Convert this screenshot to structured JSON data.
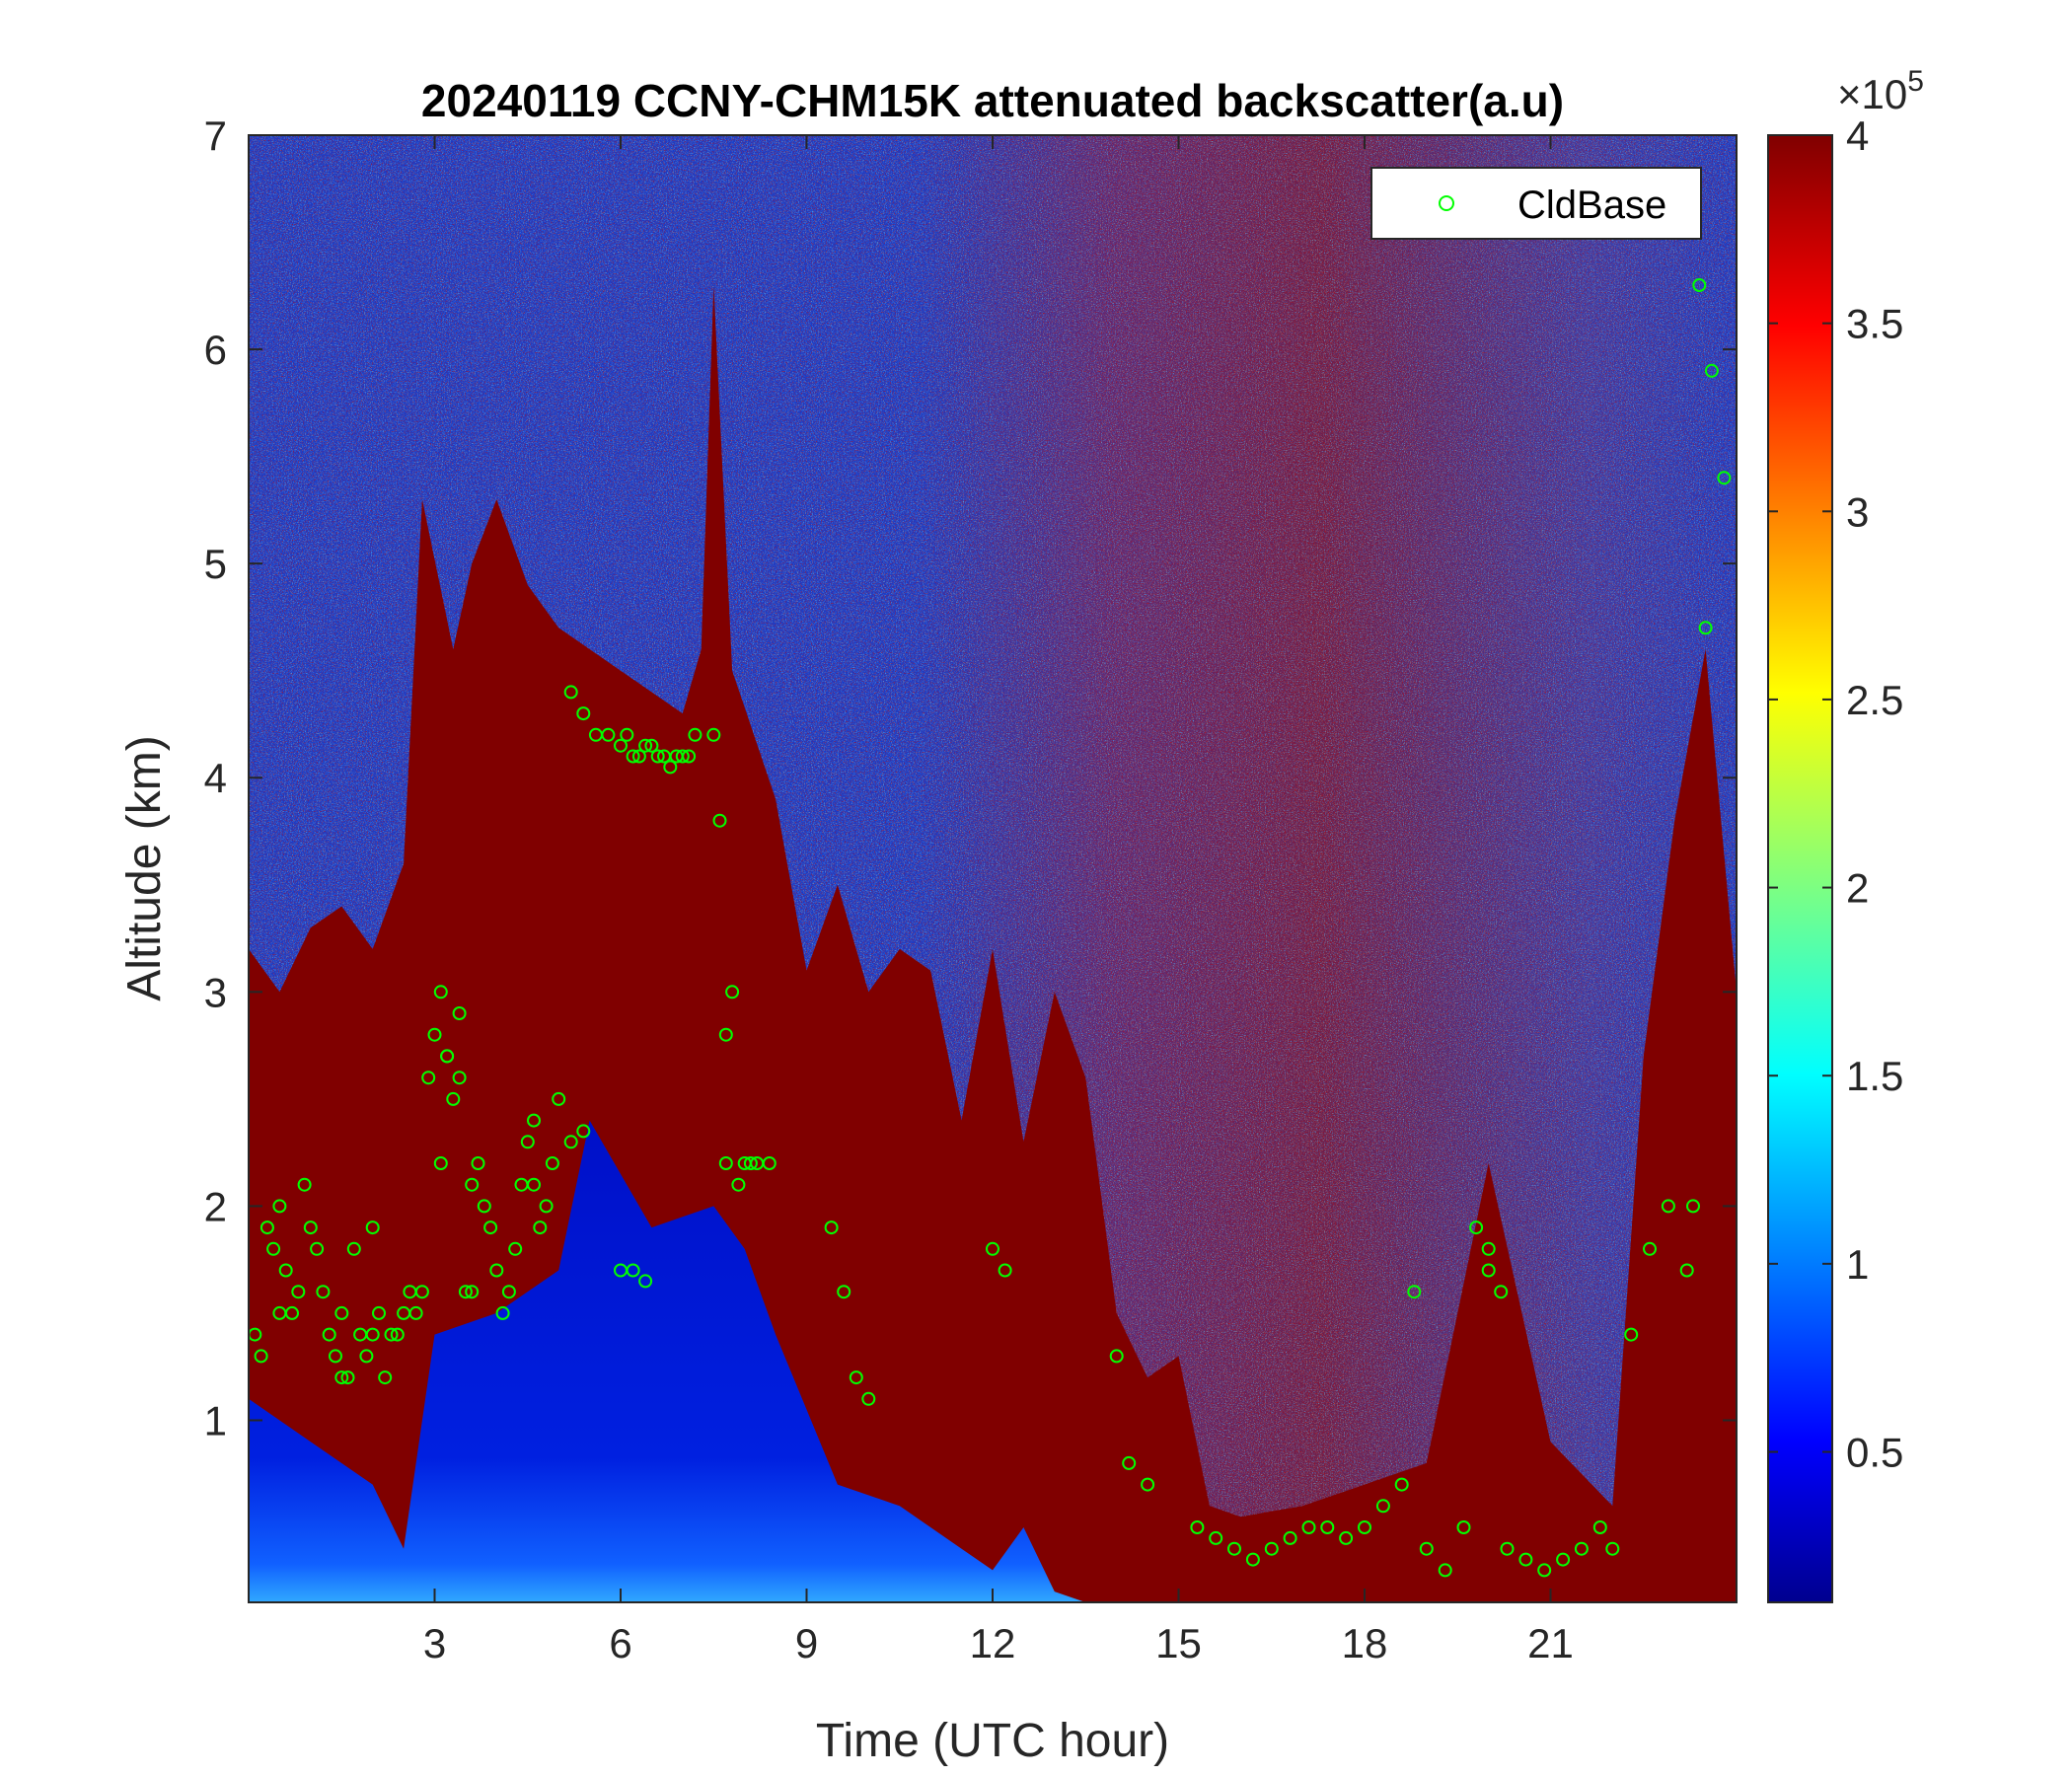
{
  "chart_data": {
    "type": "heatmap",
    "title": "20240119 CCNY-CHM15K attenuated backscatter(a.u)",
    "xlabel": "Time (UTC hour)",
    "ylabel": "Altitude (km)",
    "xlim": [
      0,
      24
    ],
    "ylim": [
      0.15,
      7
    ],
    "xticks": [
      3,
      6,
      9,
      12,
      15,
      18,
      21
    ],
    "yticks": [
      1,
      2,
      3,
      4,
      5,
      6,
      7
    ],
    "colorbar": {
      "range": [
        0.1,
        4
      ],
      "ticks": [
        0.5,
        1,
        1.5,
        2,
        2.5,
        3,
        3.5,
        4
      ],
      "multiplier_base": "10",
      "multiplier_exp": "5",
      "multiplier_sign": "×",
      "colormap": "jet"
    },
    "legend": {
      "position": "top-right",
      "entries": [
        "CldBase"
      ]
    },
    "colors": {
      "cloud_base_marker": "#00ff00",
      "axis": "#262626"
    },
    "layers": {
      "aerosol_layer_top_km": [
        {
          "t": 0.0,
          "h": 3.2
        },
        {
          "t": 0.5,
          "h": 3.0
        },
        {
          "t": 1.0,
          "h": 3.3
        },
        {
          "t": 1.5,
          "h": 3.4
        },
        {
          "t": 2.0,
          "h": 3.2
        },
        {
          "t": 2.5,
          "h": 3.6
        },
        {
          "t": 2.8,
          "h": 5.3
        },
        {
          "t": 3.3,
          "h": 4.6
        },
        {
          "t": 3.6,
          "h": 5.0
        },
        {
          "t": 4.0,
          "h": 5.3
        },
        {
          "t": 4.5,
          "h": 4.9
        },
        {
          "t": 5.0,
          "h": 4.7
        },
        {
          "t": 5.5,
          "h": 4.6
        },
        {
          "t": 6.0,
          "h": 4.5
        },
        {
          "t": 6.5,
          "h": 4.4
        },
        {
          "t": 7.0,
          "h": 4.3
        },
        {
          "t": 7.3,
          "h": 4.6
        },
        {
          "t": 7.5,
          "h": 6.3
        },
        {
          "t": 7.8,
          "h": 4.5
        },
        {
          "t": 8.5,
          "h": 3.9
        },
        {
          "t": 9.0,
          "h": 3.1
        },
        {
          "t": 9.5,
          "h": 3.5
        },
        {
          "t": 10.0,
          "h": 3.0
        },
        {
          "t": 10.5,
          "h": 3.2
        },
        {
          "t": 11.0,
          "h": 3.1
        },
        {
          "t": 11.5,
          "h": 2.4
        },
        {
          "t": 12.0,
          "h": 3.2
        },
        {
          "t": 12.5,
          "h": 2.3
        },
        {
          "t": 13.0,
          "h": 3.0
        },
        {
          "t": 13.5,
          "h": 2.6
        },
        {
          "t": 14.0,
          "h": 1.5
        },
        {
          "t": 14.5,
          "h": 1.2
        },
        {
          "t": 15.0,
          "h": 1.3
        },
        {
          "t": 15.5,
          "h": 0.6
        },
        {
          "t": 16.0,
          "h": 0.55
        },
        {
          "t": 17.0,
          "h": 0.6
        },
        {
          "t": 18.0,
          "h": 0.7
        },
        {
          "t": 19.0,
          "h": 0.8
        },
        {
          "t": 20.0,
          "h": 2.2
        },
        {
          "t": 21.0,
          "h": 0.9
        },
        {
          "t": 22.0,
          "h": 0.6
        },
        {
          "t": 22.5,
          "h": 2.7
        },
        {
          "t": 23.0,
          "h": 3.8
        },
        {
          "t": 23.5,
          "h": 4.6
        },
        {
          "t": 24.0,
          "h": 3.0
        }
      ],
      "clear_layer_top_km": [
        {
          "t": 0.0,
          "h": 1.1
        },
        {
          "t": 1.0,
          "h": 0.9
        },
        {
          "t": 2.0,
          "h": 0.7
        },
        {
          "t": 2.5,
          "h": 0.4
        },
        {
          "t": 3.0,
          "h": 1.4
        },
        {
          "t": 4.0,
          "h": 1.5
        },
        {
          "t": 5.0,
          "h": 1.7
        },
        {
          "t": 5.5,
          "h": 2.4
        },
        {
          "t": 6.5,
          "h": 1.9
        },
        {
          "t": 7.5,
          "h": 2.0
        },
        {
          "t": 8.0,
          "h": 1.8
        },
        {
          "t": 8.5,
          "h": 1.4
        },
        {
          "t": 9.5,
          "h": 0.7
        },
        {
          "t": 10.5,
          "h": 0.6
        },
        {
          "t": 11.5,
          "h": 0.4
        },
        {
          "t": 12.0,
          "h": 0.3
        },
        {
          "t": 12.5,
          "h": 0.5
        },
        {
          "t": 13.0,
          "h": 0.2
        },
        {
          "t": 13.5,
          "h": 0.15
        }
      ]
    },
    "series": [
      {
        "name": "CldBase",
        "x": [
          0.1,
          0.3,
          0.4,
          0.5,
          0.6,
          0.7,
          0.8,
          0.9,
          1.0,
          1.1,
          1.2,
          1.3,
          1.4,
          1.5,
          1.6,
          1.7,
          1.8,
          1.9,
          2.0,
          2.1,
          2.2,
          2.3,
          2.4,
          2.5,
          2.6,
          2.7,
          2.8,
          2.9,
          3.0,
          3.1,
          3.2,
          3.3,
          3.4,
          3.5,
          3.6,
          3.7,
          3.8,
          3.9,
          4.0,
          4.1,
          4.2,
          4.3,
          4.4,
          4.5,
          4.6,
          4.7,
          4.8,
          4.9,
          5.0,
          5.2,
          5.4,
          5.6,
          5.8,
          6.0,
          6.1,
          6.2,
          6.3,
          6.4,
          6.5,
          6.6,
          6.7,
          6.8,
          6.9,
          7.0,
          7.1,
          7.2,
          7.5,
          7.6,
          7.7,
          7.8,
          8.0,
          8.2,
          8.4,
          9.4,
          9.6,
          9.8,
          10.0,
          12.0,
          12.2,
          14.0,
          14.2,
          14.5,
          15.3,
          15.6,
          15.9,
          16.2,
          16.5,
          16.8,
          17.1,
          17.4,
          17.7,
          18.0,
          18.3,
          18.6,
          18.8,
          19.0,
          19.3,
          19.6,
          19.8,
          20.0,
          20.3,
          20.6,
          20.9,
          21.2,
          21.5,
          21.8,
          22.0,
          22.3,
          22.6,
          22.9,
          23.2,
          23.4,
          23.6,
          23.8,
          6.0,
          6.2,
          6.4,
          3.2,
          3.4,
          4.6,
          5.2,
          5.4,
          0.2,
          0.5,
          1.5,
          2.0,
          3.1,
          3.6,
          7.7,
          7.9,
          8.1,
          20.0,
          20.2,
          23.5,
          23.3
        ],
        "y": [
          1.4,
          1.9,
          1.8,
          2.0,
          1.7,
          1.5,
          1.6,
          2.1,
          1.9,
          1.8,
          1.6,
          1.4,
          1.3,
          1.5,
          1.2,
          1.8,
          1.4,
          1.3,
          1.9,
          1.5,
          1.2,
          1.4,
          1.4,
          1.5,
          1.6,
          1.5,
          1.6,
          2.6,
          2.8,
          3.0,
          2.7,
          2.5,
          2.9,
          1.6,
          1.6,
          2.2,
          2.0,
          1.9,
          1.7,
          1.5,
          1.6,
          1.8,
          2.1,
          2.3,
          2.1,
          1.9,
          2.0,
          2.2,
          2.5,
          4.4,
          4.3,
          4.2,
          4.2,
          4.15,
          4.2,
          4.1,
          4.1,
          4.15,
          4.15,
          4.1,
          4.1,
          4.05,
          4.1,
          4.1,
          4.1,
          4.2,
          4.2,
          3.8,
          2.8,
          3.0,
          2.2,
          2.2,
          2.2,
          1.9,
          1.6,
          1.2,
          1.1,
          1.8,
          1.7,
          1.3,
          0.8,
          0.7,
          0.5,
          0.45,
          0.4,
          0.35,
          0.4,
          0.45,
          0.5,
          0.5,
          0.45,
          0.5,
          0.6,
          0.7,
          1.6,
          0.4,
          0.3,
          0.5,
          1.9,
          1.8,
          0.4,
          0.35,
          0.3,
          0.35,
          0.4,
          0.5,
          0.4,
          1.4,
          1.8,
          2.0,
          1.7,
          6.3,
          5.9,
          5.4,
          1.7,
          1.7,
          1.65,
          2.7,
          2.6,
          2.4,
          2.3,
          2.35,
          1.3,
          1.5,
          1.2,
          1.4,
          2.2,
          2.1,
          2.2,
          2.1,
          2.2,
          1.7,
          1.6,
          4.7,
          2.0
        ]
      }
    ]
  }
}
